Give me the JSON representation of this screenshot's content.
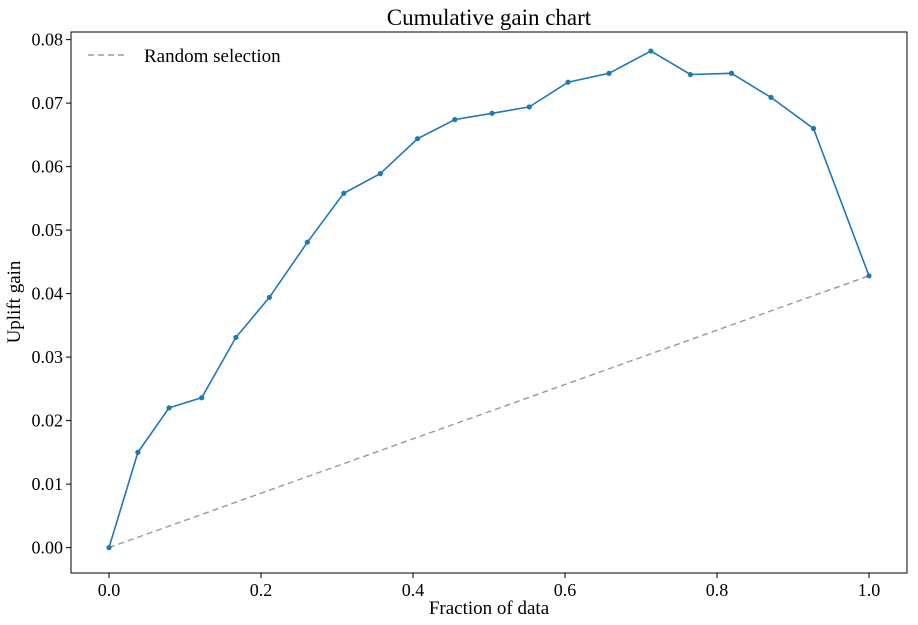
{
  "chart_data": {
    "type": "line",
    "title": "Cumulative gain chart",
    "xlabel": "Fraction of data",
    "ylabel": "Uplift gain",
    "xlim": [
      -0.05,
      1.05
    ],
    "ylim": [
      -0.004,
      0.0812
    ],
    "x_ticks": [
      0.0,
      0.2,
      0.4,
      0.6,
      0.8,
      1.0
    ],
    "x_tick_labels": [
      "0.0",
      "0.2",
      "0.4",
      "0.6",
      "0.8",
      "1.0"
    ],
    "y_ticks": [
      0.0,
      0.01,
      0.02,
      0.03,
      0.04,
      0.05,
      0.06,
      0.07,
      0.08
    ],
    "y_tick_labels": [
      "0.00",
      "0.01",
      "0.02",
      "0.03",
      "0.04",
      "0.05",
      "0.06",
      "0.07",
      "0.08"
    ],
    "grid": false,
    "legend_position": "upper-left",
    "series": [
      {
        "color": "#1f77b4",
        "style": "solid-with-dot-markers",
        "x": [
          0.0,
          0.038,
          0.079,
          0.122,
          0.167,
          0.211,
          0.261,
          0.309,
          0.357,
          0.406,
          0.455,
          0.504,
          0.553,
          0.604,
          0.658,
          0.713,
          0.765,
          0.819,
          0.871,
          0.927,
          1.0
        ],
        "y": [
          0.0,
          0.015,
          0.022,
          0.0236,
          0.0331,
          0.0394,
          0.0481,
          0.0558,
          0.0589,
          0.0644,
          0.0674,
          0.0684,
          0.0694,
          0.0733,
          0.0747,
          0.0782,
          0.0745,
          0.0747,
          0.0709,
          0.066,
          0.0428
        ]
      },
      {
        "name": "Random selection",
        "color": "#999999",
        "style": "dashed",
        "x": [
          0.0,
          1.0
        ],
        "y": [
          0.0,
          0.0428
        ]
      }
    ]
  }
}
